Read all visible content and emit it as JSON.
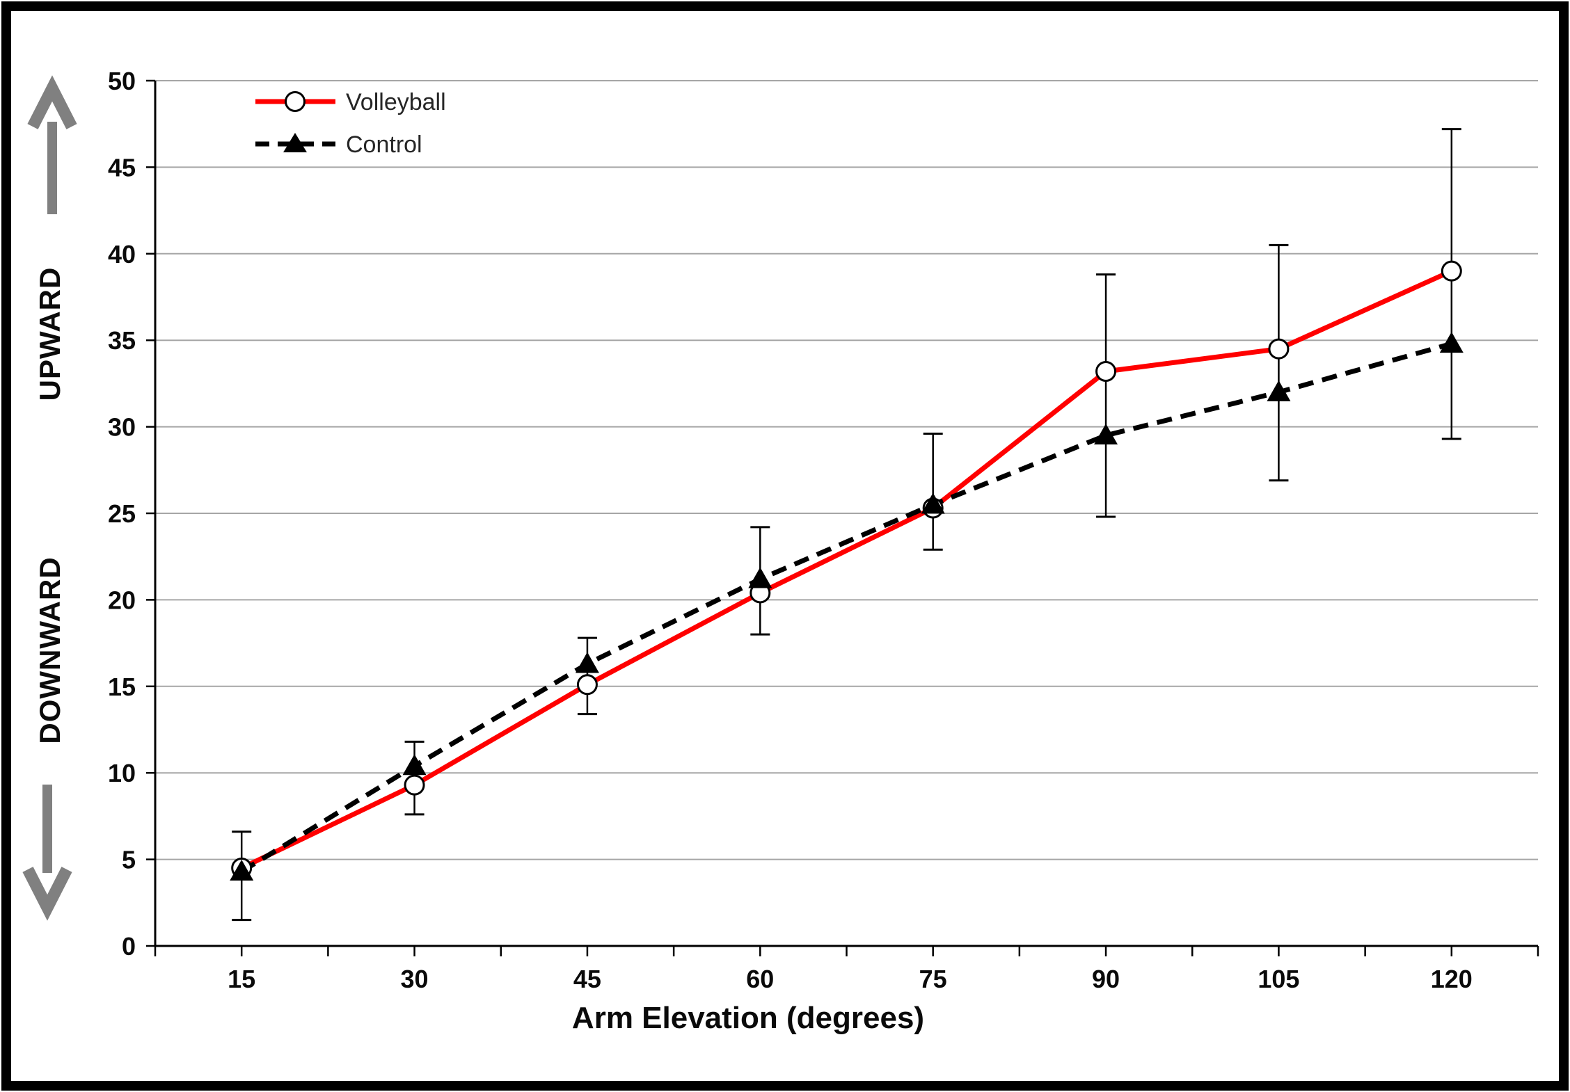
{
  "chart_data": {
    "type": "line",
    "title": "",
    "xlabel": "Arm Elevation (degrees)",
    "ylabel_upper": "UPWARD",
    "ylabel_lower": "DOWNWARD",
    "categories": [
      15,
      30,
      45,
      60,
      75,
      90,
      105,
      120
    ],
    "x_tick_labels": [
      "15",
      "30",
      "45",
      "60",
      "75",
      "90",
      "105",
      "120"
    ],
    "y_ticks": [
      0,
      5,
      10,
      15,
      20,
      25,
      30,
      35,
      40,
      45,
      50
    ],
    "ylim": [
      0,
      50
    ],
    "grid": "horizontal",
    "legend_position": "top-left-inside",
    "series": [
      {
        "name": "Volleyball",
        "values": [
          4.5,
          9.3,
          15.1,
          20.4,
          25.3,
          33.2,
          34.5,
          39.0
        ],
        "color": "#ff0000",
        "line_style": "solid",
        "marker": "open-circle"
      },
      {
        "name": "Control",
        "values": [
          4.3,
          10.4,
          16.3,
          21.2,
          25.5,
          29.5,
          32.0,
          34.8
        ],
        "color": "#000000",
        "line_style": "dashed",
        "marker": "filled-triangle"
      }
    ],
    "error_bars": {
      "high": [
        6.6,
        11.8,
        17.8,
        24.2,
        29.6,
        38.8,
        40.5,
        47.2
      ],
      "low": [
        1.5,
        7.6,
        13.4,
        18.0,
        22.9,
        24.8,
        26.9,
        29.3
      ],
      "color": "#000000"
    }
  },
  "icons": {
    "up_arrow": "↑",
    "down_arrow": "↓"
  },
  "colors": {
    "background": "#ffffff",
    "outer_border": "#000000",
    "gridline": "#a6a6a6",
    "axis": "#000000",
    "arrow": "#808080",
    "volleyball_line": "#ff0000",
    "control_line": "#000000",
    "legend_text": "#262626"
  }
}
